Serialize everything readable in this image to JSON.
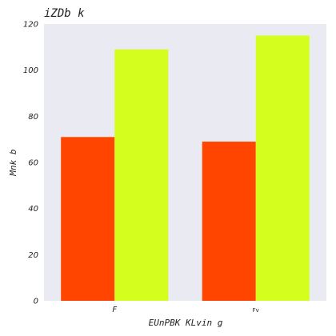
{
  "chart_data": {
    "type": "bar",
    "title": "iZDb k",
    "xlabel": "EUnPBK KLvin g",
    "ylabel": "Mnk b",
    "categories": [
      "F",
      "Fv"
    ],
    "series": [
      {
        "values": [
          71,
          69
        ],
        "color": "#ff4500"
      },
      {
        "values": [
          109,
          115
        ],
        "color": "#d4ff1e"
      }
    ],
    "ylim": [
      0,
      120
    ],
    "yticks": [
      0,
      20,
      40,
      60,
      80,
      100,
      120
    ],
    "grid": false,
    "background": "#eaeaf2"
  }
}
